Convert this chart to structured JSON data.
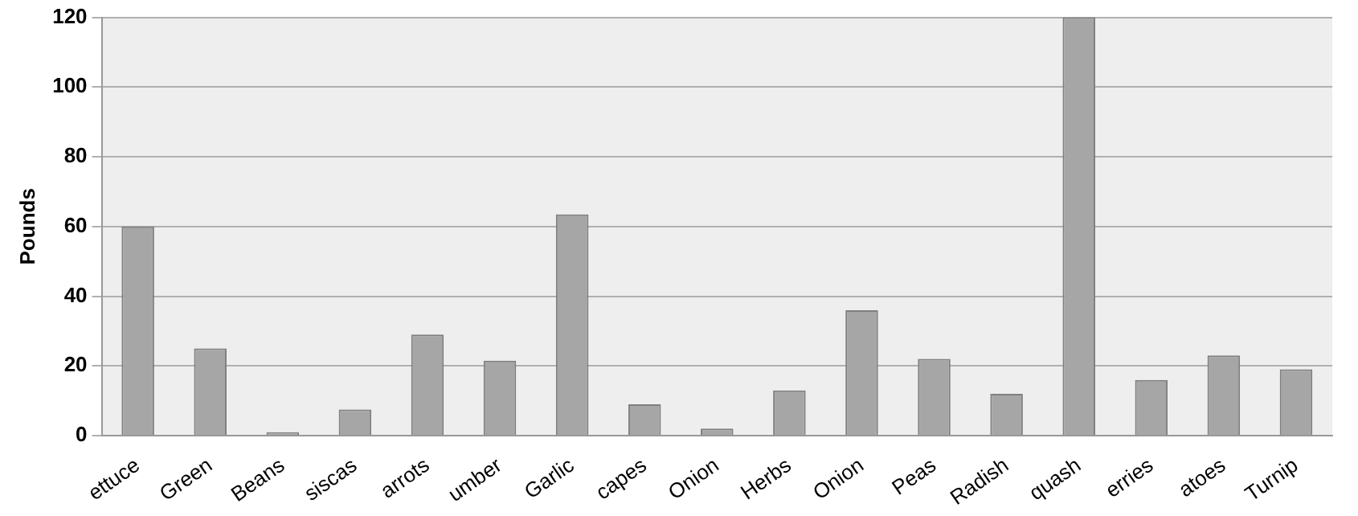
{
  "chart_data": {
    "type": "bar",
    "ylabel": "Pounds",
    "categories": [
      "ettuce",
      "Green",
      "Beans",
      "siscas",
      "arrots",
      "umber",
      "Garlic",
      "capes",
      "Onion",
      "Herbs",
      "Onion",
      "Peas",
      "Radish",
      "quash",
      "erries",
      "atoes",
      "Turnip"
    ],
    "values": [
      60,
      25,
      1,
      7.5,
      29,
      21.5,
      63.5,
      9,
      2,
      13,
      36,
      22,
      12,
      120,
      16,
      23,
      19
    ],
    "color": "#a6a6a6",
    "ylim": [
      0,
      120
    ],
    "yticks": [
      0,
      20,
      40,
      60,
      80,
      100,
      120
    ],
    "grid": "y",
    "legend": false
  }
}
